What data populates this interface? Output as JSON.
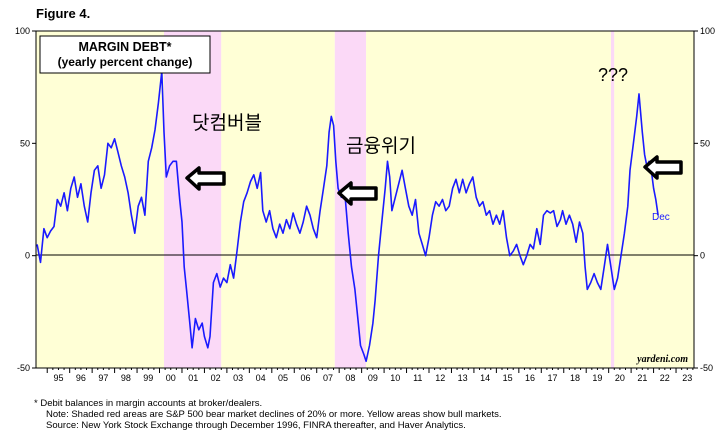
{
  "figure_label": "Figure 4.",
  "chart_data": {
    "type": "line",
    "title": "MARGIN DEBT*",
    "subtitle": "(yearly percent change)",
    "ylim": [
      -50,
      100
    ],
    "y_ticks": [
      -50,
      0,
      50,
      100
    ],
    "x_range": [
      1994.5,
      2023.8
    ],
    "x_tick_labels": [
      "95",
      "96",
      "97",
      "98",
      "99",
      "00",
      "01",
      "02",
      "03",
      "04",
      "05",
      "06",
      "07",
      "08",
      "09",
      "10",
      "11",
      "12",
      "13",
      "14",
      "15",
      "16",
      "17",
      "18",
      "19",
      "20",
      "21",
      "22",
      "23"
    ],
    "grid": false,
    "zero_line": true,
    "shaded_periods": [
      {
        "kind": "bear",
        "start": 2000.2,
        "end": 2002.75
      },
      {
        "kind": "bear",
        "start": 2007.8,
        "end": 2009.2
      },
      {
        "kind": "bear",
        "start": 2020.1,
        "end": 2020.25
      },
      {
        "kind": "bull",
        "start": 1994.5,
        "end": 2000.2
      },
      {
        "kind": "bull",
        "start": 2002.75,
        "end": 2007.8
      },
      {
        "kind": "bull",
        "start": 2009.2,
        "end": 2020.1
      },
      {
        "kind": "bull",
        "start": 2020.25,
        "end": 2023.8
      }
    ],
    "series": [
      {
        "color": "#1a1aff",
        "points": [
          [
            1994.55,
            5
          ],
          [
            1994.7,
            -3
          ],
          [
            1994.85,
            12
          ],
          [
            1995.0,
            8
          ],
          [
            1995.15,
            11
          ],
          [
            1995.3,
            13
          ],
          [
            1995.45,
            25
          ],
          [
            1995.6,
            22
          ],
          [
            1995.75,
            28
          ],
          [
            1995.9,
            20
          ],
          [
            1996.05,
            30
          ],
          [
            1996.2,
            35
          ],
          [
            1996.35,
            26
          ],
          [
            1996.5,
            32
          ],
          [
            1996.65,
            22
          ],
          [
            1996.8,
            15
          ],
          [
            1996.95,
            28
          ],
          [
            1997.1,
            38
          ],
          [
            1997.25,
            40
          ],
          [
            1997.4,
            30
          ],
          [
            1997.55,
            36
          ],
          [
            1997.7,
            50
          ],
          [
            1997.85,
            48
          ],
          [
            1998.0,
            52
          ],
          [
            1998.15,
            46
          ],
          [
            1998.3,
            40
          ],
          [
            1998.45,
            35
          ],
          [
            1998.6,
            28
          ],
          [
            1998.75,
            18
          ],
          [
            1998.9,
            10
          ],
          [
            1999.05,
            22
          ],
          [
            1999.2,
            26
          ],
          [
            1999.35,
            18
          ],
          [
            1999.5,
            42
          ],
          [
            1999.65,
            48
          ],
          [
            1999.8,
            56
          ],
          [
            1999.95,
            68
          ],
          [
            2000.1,
            82
          ],
          [
            2000.2,
            55
          ],
          [
            2000.3,
            35
          ],
          [
            2000.45,
            40
          ],
          [
            2000.6,
            42
          ],
          [
            2000.75,
            42
          ],
          [
            2000.9,
            25
          ],
          [
            2001.0,
            15
          ],
          [
            2001.1,
            -5
          ],
          [
            2001.2,
            -15
          ],
          [
            2001.35,
            -30
          ],
          [
            2001.45,
            -41
          ],
          [
            2001.6,
            -28
          ],
          [
            2001.75,
            -33
          ],
          [
            2001.9,
            -30
          ],
          [
            2002.0,
            -36
          ],
          [
            2002.15,
            -41
          ],
          [
            2002.25,
            -36
          ],
          [
            2002.4,
            -12
          ],
          [
            2002.55,
            -8
          ],
          [
            2002.7,
            -14
          ],
          [
            2002.85,
            -10
          ],
          [
            2003.0,
            -12
          ],
          [
            2003.15,
            -4
          ],
          [
            2003.3,
            -10
          ],
          [
            2003.45,
            2
          ],
          [
            2003.6,
            15
          ],
          [
            2003.75,
            24
          ],
          [
            2003.9,
            28
          ],
          [
            2004.05,
            33
          ],
          [
            2004.2,
            36
          ],
          [
            2004.35,
            30
          ],
          [
            2004.5,
            37
          ],
          [
            2004.6,
            20
          ],
          [
            2004.75,
            15
          ],
          [
            2004.9,
            20
          ],
          [
            2005.05,
            12
          ],
          [
            2005.2,
            8
          ],
          [
            2005.35,
            14
          ],
          [
            2005.5,
            10
          ],
          [
            2005.65,
            16
          ],
          [
            2005.8,
            12
          ],
          [
            2005.95,
            19
          ],
          [
            2006.1,
            14
          ],
          [
            2006.25,
            10
          ],
          [
            2006.4,
            15
          ],
          [
            2006.55,
            22
          ],
          [
            2006.7,
            18
          ],
          [
            2006.85,
            12
          ],
          [
            2007.0,
            8
          ],
          [
            2007.15,
            20
          ],
          [
            2007.3,
            30
          ],
          [
            2007.45,
            40
          ],
          [
            2007.55,
            55
          ],
          [
            2007.65,
            62
          ],
          [
            2007.75,
            58
          ],
          [
            2007.85,
            42
          ],
          [
            2007.95,
            30
          ],
          [
            2008.1,
            26
          ],
          [
            2008.25,
            28
          ],
          [
            2008.4,
            10
          ],
          [
            2008.55,
            -5
          ],
          [
            2008.7,
            -15
          ],
          [
            2008.85,
            -30
          ],
          [
            2008.95,
            -40
          ],
          [
            2009.1,
            -44
          ],
          [
            2009.2,
            -47
          ],
          [
            2009.35,
            -40
          ],
          [
            2009.5,
            -30
          ],
          [
            2009.6,
            -20
          ],
          [
            2009.75,
            0
          ],
          [
            2009.9,
            15
          ],
          [
            2010.05,
            30
          ],
          [
            2010.15,
            42
          ],
          [
            2010.25,
            35
          ],
          [
            2010.35,
            20
          ],
          [
            2010.5,
            26
          ],
          [
            2010.65,
            32
          ],
          [
            2010.8,
            38
          ],
          [
            2010.95,
            30
          ],
          [
            2011.1,
            22
          ],
          [
            2011.25,
            18
          ],
          [
            2011.4,
            25
          ],
          [
            2011.55,
            10
          ],
          [
            2011.7,
            5
          ],
          [
            2011.85,
            0
          ],
          [
            2012.0,
            8
          ],
          [
            2012.15,
            18
          ],
          [
            2012.3,
            24
          ],
          [
            2012.45,
            22
          ],
          [
            2012.6,
            25
          ],
          [
            2012.75,
            20
          ],
          [
            2012.9,
            22
          ],
          [
            2013.05,
            30
          ],
          [
            2013.2,
            34
          ],
          [
            2013.35,
            28
          ],
          [
            2013.5,
            34
          ],
          [
            2013.65,
            28
          ],
          [
            2013.8,
            32
          ],
          [
            2013.95,
            35
          ],
          [
            2014.1,
            26
          ],
          [
            2014.25,
            22
          ],
          [
            2014.4,
            24
          ],
          [
            2014.55,
            18
          ],
          [
            2014.7,
            20
          ],
          [
            2014.85,
            14
          ],
          [
            2015.0,
            18
          ],
          [
            2015.15,
            14
          ],
          [
            2015.3,
            20
          ],
          [
            2015.45,
            8
          ],
          [
            2015.6,
            0
          ],
          [
            2015.75,
            2
          ],
          [
            2015.9,
            5
          ],
          [
            2016.05,
            0
          ],
          [
            2016.2,
            -4
          ],
          [
            2016.35,
            0
          ],
          [
            2016.5,
            5
          ],
          [
            2016.65,
            3
          ],
          [
            2016.8,
            12
          ],
          [
            2016.95,
            5
          ],
          [
            2017.1,
            18
          ],
          [
            2017.25,
            20
          ],
          [
            2017.4,
            19
          ],
          [
            2017.55,
            20
          ],
          [
            2017.7,
            13
          ],
          [
            2017.85,
            16
          ],
          [
            2017.95,
            20
          ],
          [
            2018.1,
            14
          ],
          [
            2018.25,
            18
          ],
          [
            2018.4,
            14
          ],
          [
            2018.55,
            6
          ],
          [
            2018.7,
            15
          ],
          [
            2018.85,
            10
          ],
          [
            2018.95,
            -5
          ],
          [
            2019.05,
            -15
          ],
          [
            2019.2,
            -12
          ],
          [
            2019.35,
            -8
          ],
          [
            2019.5,
            -12
          ],
          [
            2019.65,
            -15
          ],
          [
            2019.8,
            -5
          ],
          [
            2019.95,
            5
          ],
          [
            2020.1,
            -5
          ],
          [
            2020.25,
            -15
          ],
          [
            2020.4,
            -10
          ],
          [
            2020.55,
            0
          ],
          [
            2020.7,
            10
          ],
          [
            2020.85,
            22
          ],
          [
            2020.95,
            38
          ],
          [
            2021.1,
            50
          ],
          [
            2021.25,
            62
          ],
          [
            2021.35,
            72
          ],
          [
            2021.5,
            55
          ],
          [
            2021.6,
            45
          ],
          [
            2021.7,
            40
          ],
          [
            2021.8,
            42
          ],
          [
            2021.9,
            38
          ],
          [
            2022.0,
            30
          ],
          [
            2022.1,
            25
          ],
          [
            2022.2,
            18
          ]
        ]
      }
    ],
    "annotations": {
      "end_label": "Dec",
      "question": "???",
      "dotcom": "닷컴버블",
      "crisis": "금융위기",
      "source": "yardeni.com"
    }
  },
  "notes": [
    "*  Debit balances in margin accounts at broker/dealers.",
    "Note: Shaded red areas are S&P 500 bear market declines of 20% or more. Yellow areas show bull markets.",
    "Source: New York Stock Exchange through December 1996, FINRA thereafter, and Haver Analytics."
  ]
}
